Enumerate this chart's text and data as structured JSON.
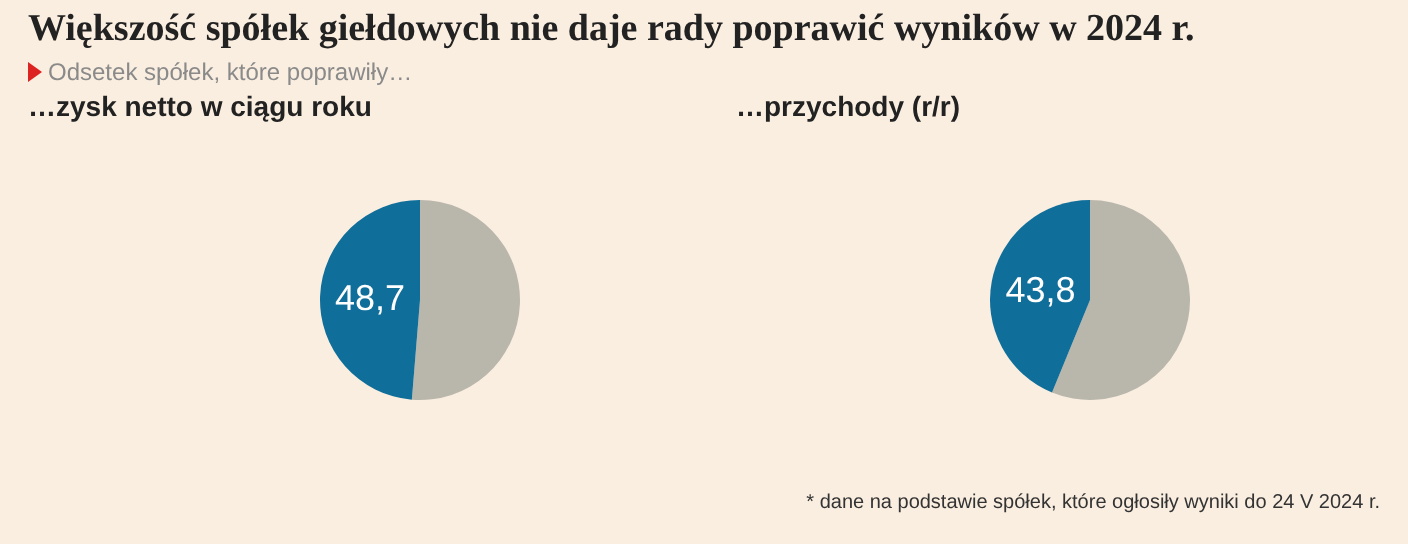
{
  "chart_data": [
    {
      "type": "pie",
      "title": "Większość spółek giełdowych nie daje rady poprawić wyników w 2024 r.",
      "subtitle": "Odsetek spółek, które poprawiły…",
      "annotations": [
        "…zysk netto w ciągu roku"
      ],
      "categories": [
        null,
        null
      ],
      "values": [
        51.3,
        48.7
      ],
      "colors": [
        "#b9b6ab",
        "#0f6e9a"
      ],
      "value_labels": [
        null,
        "48,7"
      ]
    },
    {
      "type": "pie",
      "title": "…przychody (r/r)",
      "annotations": [
        "* dane na podstawie spółek, które ogłosiły wyniki do 24 V 2024 r."
      ],
      "categories": [
        null,
        null
      ],
      "values": [
        56.2,
        43.8
      ],
      "colors": [
        "#b9b6ab",
        "#0f6e9a"
      ],
      "value_labels": [
        null,
        "43,8"
      ]
    }
  ]
}
